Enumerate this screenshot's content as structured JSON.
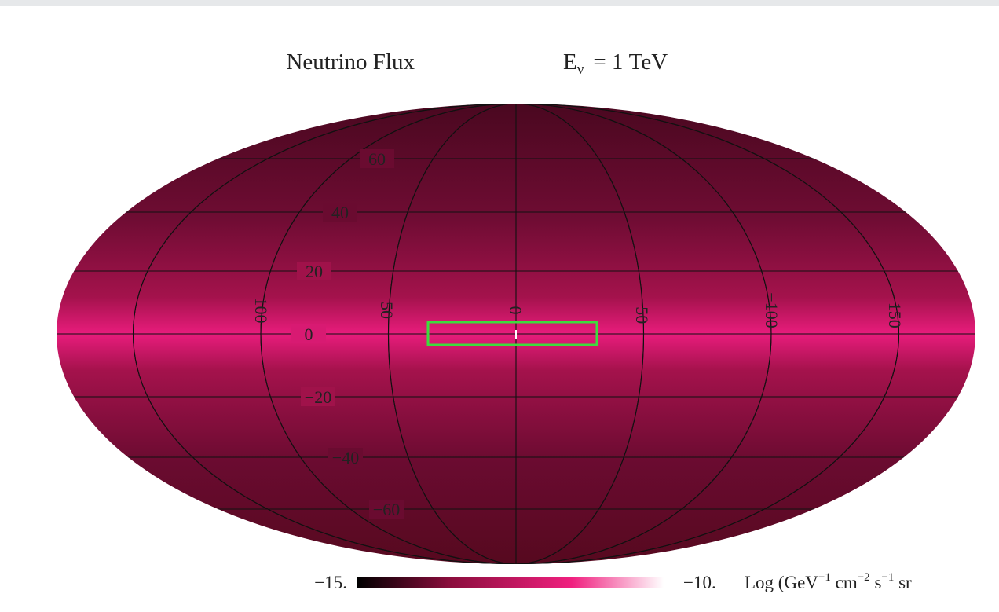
{
  "title": {
    "name": "Neutrino Flux",
    "energy_symbol": "E",
    "energy_subscript": "ν",
    "energy_value": "= 1 TeV"
  },
  "map": {
    "latitude_labels": [
      "60",
      "40",
      "20",
      "0",
      "−20",
      "−40",
      "−60"
    ],
    "longitude_labels": [
      "100",
      "50",
      "0",
      "−50",
      "−100",
      "−150"
    ]
  },
  "colorbar": {
    "min_label": "−15.",
    "max_label": "−10.",
    "unit_parts": [
      "Log (GeV",
      "−1",
      " cm",
      "−2",
      " s",
      "−1",
      " sr"
    ]
  }
}
